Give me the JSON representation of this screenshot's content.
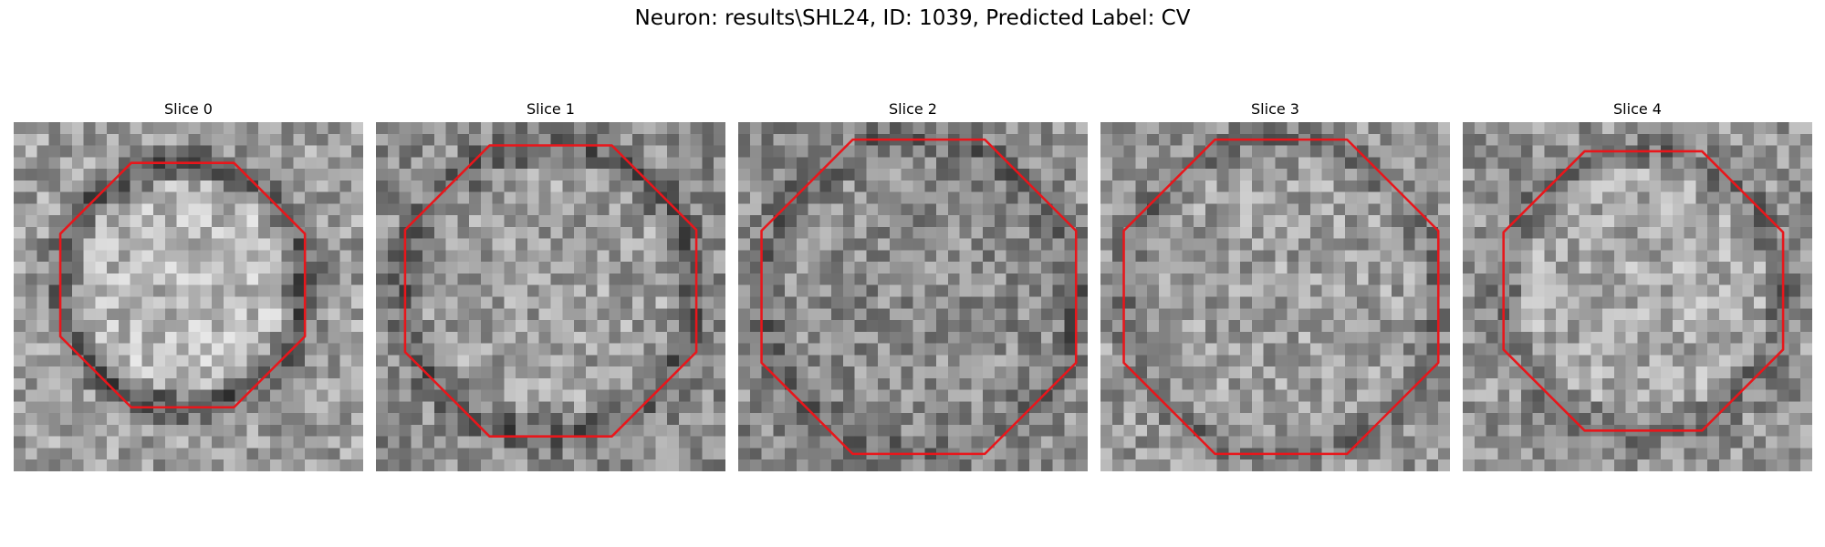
{
  "figure": {
    "title": "Neuron: results\\SHL24, ID: 1039, Predicted Label: CV"
  },
  "panels": [
    {
      "title": "Slice 0"
    },
    {
      "title": "Slice 1"
    },
    {
      "title": "Slice 2"
    },
    {
      "title": "Slice 3"
    },
    {
      "title": "Slice 4"
    }
  ],
  "colors": {
    "contour": "#e8161b",
    "background": "#ffffff"
  }
}
